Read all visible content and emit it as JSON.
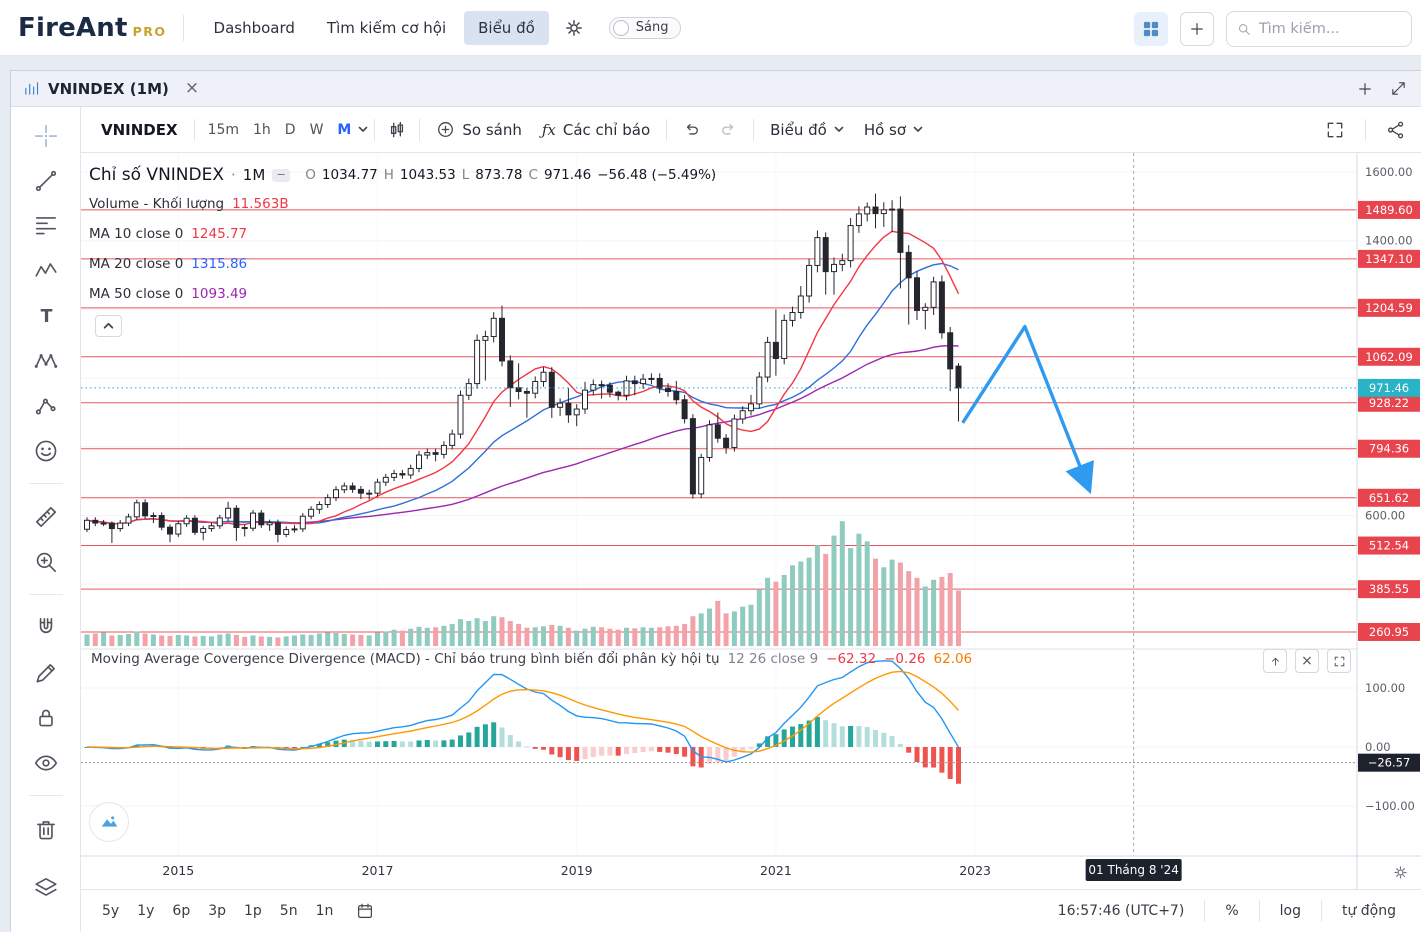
{
  "navbar": {
    "brand": "FireAnt",
    "brand_suffix": "PRO",
    "menu": [
      "Dashboard",
      "Tìm kiếm cơ hội",
      "Biểu đồ"
    ],
    "active_menu": "Biểu đồ",
    "theme_toggle_label": "Sáng",
    "search_placeholder": "Tìm kiếm...",
    "icons": [
      "settings-gear-icon",
      "apps-grid-icon",
      "add-icon",
      "search-icon"
    ]
  },
  "tabbar": {
    "title": "VNINDEX (1M)",
    "close": "×",
    "add": "+",
    "icons": [
      "chart-tab-icon",
      "add-tab-icon",
      "popout-icon"
    ]
  },
  "toolbar": {
    "symbol": "VNINDEX",
    "timeframes": [
      "15m",
      "1h",
      "D",
      "W",
      "M"
    ],
    "active_timeframe": "M",
    "compare_label": "So sánh",
    "fx_glyph": "ƒx",
    "indicators_label": "Các chỉ báo",
    "chart_menu_label": "Biểu đồ",
    "profile_menu_label": "Hồ sơ",
    "icons": [
      "candle-style-icon",
      "compare-plus-icon",
      "undo-icon",
      "redo-icon",
      "fullscreen-icon",
      "share-icon"
    ]
  },
  "sidebar_tools": [
    "crosshair",
    "trend-line",
    "fib-retracement",
    "elliott-wave",
    "text",
    "xabcd-pattern",
    "forecast",
    "emoji",
    "ruler",
    "zoom-in",
    "magnet",
    "draw",
    "lock",
    "eye",
    "trash",
    "layers"
  ],
  "legend": {
    "title": "Chỉ số VNINDEX",
    "separator": "·",
    "timeframe": "1M",
    "dash": "−",
    "o_label": "O",
    "o": "1034.77",
    "h_label": "H",
    "h": "1043.53",
    "l_label": "L",
    "l": "873.78",
    "c_label": "C",
    "c": "971.46",
    "change": "−56.48 (−5.49%)",
    "volume_label": "Volume - Khối lượng",
    "volume_value": "11.563B",
    "ma10_label": "MA 10 close 0",
    "ma10_value": "1245.77",
    "ma20_label": "MA 20 close 0",
    "ma20_value": "1315.86",
    "ma50_label": "MA 50 close 0",
    "ma50_value": "1093.49",
    "collapse_glyph": "⌃"
  },
  "macd_header": {
    "title": "Moving Average Covergence Divergence (MACD) - Chỉ báo trung bình biến đổi phân kỳ hội tụ",
    "params": "12 26 close 9",
    "hist_value": "−62.32",
    "macd_value": "−0.26",
    "signal_value": "62.06",
    "close_glyph": "×"
  },
  "price_axis": {
    "gridline_labels": [
      {
        "label": "1600.00",
        "value": 1600
      },
      {
        "label": "1400.00",
        "value": 1400
      },
      {
        "label": "600.00",
        "value": 600
      }
    ],
    "level_badges": [
      1489.6,
      1347.1,
      1204.59,
      1062.09,
      928.22,
      794.36,
      651.62,
      512.54,
      385.55,
      260.95
    ],
    "current_price_badge": "971.46"
  },
  "macd_axis": {
    "gridline_labels": [
      {
        "label": "100.00",
        "value": 100
      },
      {
        "label": "0.00",
        "value": 0
      },
      {
        "label": "−100.00",
        "value": -100
      }
    ],
    "last_value": -26.57,
    "last_badge": "−26.57"
  },
  "time_axis": {
    "labels": [
      "2015",
      "2017",
      "2019",
      "2021",
      "2023"
    ],
    "crosshair_label": "01 Tháng 8 '24"
  },
  "bottom_toolbar": {
    "ranges": [
      "5y",
      "1y",
      "6p",
      "3p",
      "1p",
      "5n",
      "1n"
    ],
    "clock": "16:57:46 (UTC+7)",
    "percent_label": "%",
    "log_label": "log",
    "auto_label": "tự động"
  },
  "chart_data": {
    "type": "candlestick+volume+macd",
    "symbol": "VNINDEX",
    "interval": "1M",
    "start_month": "2014-02",
    "columns": [
      "open",
      "high",
      "low",
      "close",
      "volume_B"
    ],
    "candles": [
      [
        560,
        595,
        552,
        586,
        2.4
      ],
      [
        586,
        595,
        569,
        578,
        2.6
      ],
      [
        578,
        587,
        569,
        578,
        2.8
      ],
      [
        578,
        583,
        520,
        562,
        2.2
      ],
      [
        562,
        587,
        553,
        578,
        2.3
      ],
      [
        578,
        605,
        569,
        596,
        2.5
      ],
      [
        596,
        646,
        587,
        637,
        3.0
      ],
      [
        637,
        647,
        590,
        599,
        2.6
      ],
      [
        599,
        609,
        578,
        600,
        2.4
      ],
      [
        600,
        609,
        557,
        566,
        2.2
      ],
      [
        566,
        574,
        522,
        546,
        2.1
      ],
      [
        546,
        585,
        538,
        576,
        2.3
      ],
      [
        576,
        601,
        567,
        592,
        2.2
      ],
      [
        592,
        601,
        543,
        551,
        2.0
      ],
      [
        551,
        570,
        528,
        562,
        2.1
      ],
      [
        562,
        579,
        553,
        570,
        2.0
      ],
      [
        570,
        602,
        561,
        593,
        2.4
      ],
      [
        593,
        640,
        584,
        621,
        2.6
      ],
      [
        621,
        630,
        526,
        565,
        2.3
      ],
      [
        565,
        574,
        539,
        563,
        1.9
      ],
      [
        563,
        616,
        554,
        607,
        2.2
      ],
      [
        607,
        616,
        564,
        573,
        2.0
      ],
      [
        573,
        588,
        555,
        579,
        1.9
      ],
      [
        579,
        588,
        522,
        545,
        1.8
      ],
      [
        545,
        568,
        537,
        559,
        2.0
      ],
      [
        559,
        572,
        550,
        561,
        2.2
      ],
      [
        561,
        607,
        552,
        598,
        2.4
      ],
      [
        598,
        627,
        589,
        618,
        2.3
      ],
      [
        618,
        641,
        605,
        632,
        2.6
      ],
      [
        632,
        662,
        622,
        652,
        2.8
      ],
      [
        652,
        685,
        642,
        675,
        2.7
      ],
      [
        675,
        696,
        665,
        686,
        2.5
      ],
      [
        686,
        696,
        666,
        676,
        2.4
      ],
      [
        676,
        686,
        648,
        665,
        2.3
      ],
      [
        665,
        675,
        646,
        665,
        2.2
      ],
      [
        665,
        707,
        655,
        697,
        2.8
      ],
      [
        697,
        721,
        686,
        711,
        3.0
      ],
      [
        711,
        733,
        700,
        722,
        3.4
      ],
      [
        722,
        733,
        707,
        718,
        3.2
      ],
      [
        718,
        748,
        707,
        737,
        3.6
      ],
      [
        737,
        788,
        726,
        776,
        4.0
      ],
      [
        776,
        795,
        764,
        783,
        3.8
      ],
      [
        783,
        795,
        758,
        778,
        3.9
      ],
      [
        778,
        816,
        766,
        804,
        4.2
      ],
      [
        804,
        850,
        792,
        837,
        4.6
      ],
      [
        837,
        964,
        824,
        950,
        5.6
      ],
      [
        950,
        999,
        936,
        984,
        5.2
      ],
      [
        984,
        1127,
        969,
        1110,
        5.8
      ],
      [
        1110,
        1138,
        993,
        1121,
        5.2
      ],
      [
        1121,
        1192,
        1104,
        1174,
        6.2
      ],
      [
        1174,
        1211,
        1034,
        1050,
        6.0
      ],
      [
        1050,
        1066,
        916,
        972,
        5.2
      ],
      [
        972,
        1043,
        938,
        961,
        4.6
      ],
      [
        961,
        971,
        885,
        956,
        3.8
      ],
      [
        956,
        1005,
        941,
        990,
        3.9
      ],
      [
        990,
        1032,
        975,
        1017,
        4.1
      ],
      [
        1017,
        1032,
        884,
        915,
        4.4
      ],
      [
        915,
        941,
        890,
        927,
        4.2
      ],
      [
        927,
        971,
        870,
        893,
        3.8
      ],
      [
        893,
        924,
        860,
        910,
        3.2
      ],
      [
        910,
        989,
        896,
        965,
        3.6
      ],
      [
        965,
        996,
        950,
        981,
        4.0
      ],
      [
        981,
        993,
        940,
        979,
        3.9
      ],
      [
        979,
        988,
        944,
        959,
        3.6
      ],
      [
        959,
        964,
        935,
        950,
        3.4
      ],
      [
        950,
        1007,
        935,
        992,
        3.8
      ],
      [
        992,
        1007,
        950,
        984,
        3.7
      ],
      [
        984,
        1012,
        969,
        997,
        3.9
      ],
      [
        997,
        1014,
        982,
        999,
        3.8
      ],
      [
        999,
        1014,
        956,
        971,
        3.9
      ],
      [
        971,
        985,
        946,
        961,
        4.1
      ],
      [
        961,
        992,
        923,
        937,
        4.2
      ],
      [
        937,
        951,
        868,
        882,
        4.6
      ],
      [
        882,
        895,
        649,
        663,
        6.2
      ],
      [
        663,
        780,
        650,
        769,
        6.8
      ],
      [
        769,
        877,
        757,
        864,
        7.8
      ],
      [
        864,
        900,
        812,
        825,
        9.4
      ],
      [
        825,
        837,
        780,
        798,
        6.8
      ],
      [
        798,
        894,
        786,
        881,
        7.2
      ],
      [
        881,
        918,
        867,
        905,
        8.2
      ],
      [
        905,
        951,
        891,
        925,
        8.6
      ],
      [
        925,
        1018,
        911,
        1003,
        11.8
      ],
      [
        1003,
        1120,
        988,
        1104,
        14.2
      ],
      [
        1104,
        1200,
        1007,
        1057,
        13.4
      ],
      [
        1057,
        1185,
        1040,
        1168,
        14.8
      ],
      [
        1168,
        1208,
        1150,
        1191,
        16.8
      ],
      [
        1191,
        1268,
        1173,
        1239,
        17.6
      ],
      [
        1239,
        1348,
        1220,
        1328,
        18.4
      ],
      [
        1328,
        1430,
        1308,
        1409,
        21.0
      ],
      [
        1409,
        1424,
        1243,
        1310,
        19.2
      ],
      [
        1310,
        1351,
        1243,
        1331,
        23.0
      ],
      [
        1331,
        1362,
        1311,
        1342,
        26.0
      ],
      [
        1342,
        1466,
        1322,
        1444,
        20.4
      ],
      [
        1444,
        1500,
        1423,
        1478,
        23.4
      ],
      [
        1478,
        1511,
        1456,
        1498,
        21.8
      ],
      [
        1498,
        1537,
        1436,
        1479,
        18.2
      ],
      [
        1479,
        1512,
        1440,
        1490,
        16.4
      ],
      [
        1490,
        1518,
        1425,
        1492,
        18.0
      ],
      [
        1492,
        1529,
        1261,
        1366,
        17.4
      ],
      [
        1366,
        1387,
        1156,
        1292,
        15.6
      ],
      [
        1292,
        1311,
        1169,
        1197,
        14.2
      ],
      [
        1197,
        1218,
        1142,
        1206,
        12.4
      ],
      [
        1206,
        1295,
        1184,
        1280,
        13.8
      ],
      [
        1280,
        1299,
        1115,
        1132,
        14.4
      ],
      [
        1132,
        1149,
        962,
        1027,
        15.2
      ],
      [
        1034.77,
        1043.53,
        873.78,
        971.46,
        11.563
      ]
    ],
    "levels": [
      1489.6,
      1347.1,
      1204.59,
      1062.09,
      928.22,
      794.36,
      651.62,
      512.54,
      385.55,
      260.95
    ],
    "current_price": 971.46,
    "ma_periods": [
      10,
      20,
      50
    ],
    "macd_params": [
      12,
      26,
      9
    ],
    "drawing_arrow": [
      [
        105.5,
        870
      ],
      [
        113,
        1150
      ],
      [
        120.5,
        690
      ]
    ],
    "crosshair_t": 126.1,
    "year_ticks": [
      {
        "label": "2015",
        "t": 11
      },
      {
        "label": "2017",
        "t": 35
      },
      {
        "label": "2019",
        "t": 59
      },
      {
        "label": "2021",
        "t": 83
      },
      {
        "label": "2023",
        "t": 107
      }
    ]
  },
  "colors": {
    "accent_blue": "#2962ff",
    "brand_navy": "#1c2b45",
    "brand_gold": "#c9a22c",
    "candle": "#24262d",
    "candle_up_fill": "#ffffff",
    "vol_up": "#8fcbbf",
    "vol_down": "#f2a3a9",
    "ma10": "#f23645",
    "ma20": "#2e6fd8",
    "ma50": "#9c27b0",
    "level_red": "#e8444e",
    "badge_red": "#e8444e",
    "badge_teal": "#29b3c6",
    "badge_dark": "#1e222d",
    "price_line": "#2f9fd4",
    "macd_line": "#2196f3",
    "signal_line": "#ff9800",
    "hist_up": "#26a69a",
    "hist_up_weak": "#b2dfdb",
    "hist_down": "#ef5350",
    "hist_down_weak": "#fccbcd",
    "arrow": "#2e9bf0"
  }
}
